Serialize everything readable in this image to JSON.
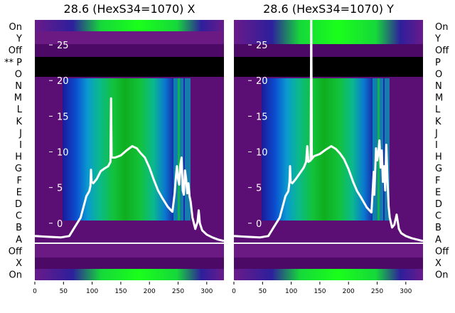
{
  "chart_data": [
    {
      "type": "heatmap",
      "title": "28.6 (HexS34=1070) X",
      "xticks": [
        0,
        50,
        100,
        150,
        200,
        250,
        300
      ],
      "xlim": [
        0,
        330
      ],
      "yticks": [
        0,
        5,
        10,
        15,
        20,
        25
      ],
      "ylim": [
        -8,
        28.5
      ],
      "horizontal_line_y": -2.8,
      "line": {
        "color": "#ffffff",
        "points": [
          [
            0,
            -1.8
          ],
          [
            20,
            -1.9
          ],
          [
            45,
            -2.0
          ],
          [
            60,
            -1.8
          ],
          [
            70,
            -0.5
          ],
          [
            80,
            0.8
          ],
          [
            90,
            3.8
          ],
          [
            95,
            4.5
          ],
          [
            97,
            5.2
          ],
          [
            98,
            7.5
          ],
          [
            99,
            5.8
          ],
          [
            102,
            5.6
          ],
          [
            108,
            6.2
          ],
          [
            115,
            7.3
          ],
          [
            122,
            7.7
          ],
          [
            128,
            8.0
          ],
          [
            132,
            8.6
          ],
          [
            133,
            17.5
          ],
          [
            134,
            9.2
          ],
          [
            140,
            9.2
          ],
          [
            150,
            9.5
          ],
          [
            160,
            10.2
          ],
          [
            170,
            10.8
          ],
          [
            178,
            10.5
          ],
          [
            185,
            9.8
          ],
          [
            192,
            9.2
          ],
          [
            200,
            7.8
          ],
          [
            208,
            6.0
          ],
          [
            215,
            4.6
          ],
          [
            222,
            3.6
          ],
          [
            232,
            2.3
          ],
          [
            240,
            1.6
          ],
          [
            244,
            4.2
          ],
          [
            246,
            6.3
          ],
          [
            248,
            8.0
          ],
          [
            250,
            6.2
          ],
          [
            252,
            5.4
          ],
          [
            254,
            8.2
          ],
          [
            256,
            9.2
          ],
          [
            258,
            4.6
          ],
          [
            260,
            4.0
          ],
          [
            262,
            7.4
          ],
          [
            264,
            6.2
          ],
          [
            266,
            4.2
          ],
          [
            268,
            5.6
          ],
          [
            270,
            3.8
          ],
          [
            272,
            3.0
          ],
          [
            275,
            0.8
          ],
          [
            280,
            -0.8
          ],
          [
            284,
            0.2
          ],
          [
            286,
            1.8
          ],
          [
            288,
            0.0
          ],
          [
            292,
            -1.0
          ],
          [
            300,
            -1.6
          ],
          [
            310,
            -2.0
          ],
          [
            320,
            -2.3
          ],
          [
            330,
            -2.5
          ]
        ]
      },
      "rows_top": [
        "On",
        "Y",
        "Off",
        "** P",
        "O",
        "N",
        "M",
        "L",
        "K",
        "J",
        "I",
        "H",
        "G",
        "F",
        "E",
        "D",
        "C",
        "B",
        "A",
        "Off",
        "X",
        "On"
      ],
      "colors": {
        "background": "#5b0f74",
        "band": "#0f2a9a",
        "green": "#19f019",
        "black": "#000000"
      }
    },
    {
      "type": "heatmap",
      "title": "28.6 (HexS34=1070) Y",
      "xticks": [
        0,
        50,
        100,
        150,
        200,
        250,
        300
      ],
      "xlim": [
        0,
        330
      ],
      "yticks": [
        0,
        5,
        10,
        15,
        20,
        25
      ],
      "ylim": [
        -8,
        28.5
      ],
      "horizontal_line_y": -2.8,
      "line": {
        "color": "#ffffff",
        "points": [
          [
            0,
            -1.8
          ],
          [
            20,
            -1.9
          ],
          [
            45,
            -2.0
          ],
          [
            60,
            -1.8
          ],
          [
            70,
            -0.5
          ],
          [
            80,
            0.8
          ],
          [
            90,
            3.8
          ],
          [
            95,
            4.5
          ],
          [
            97,
            5.8
          ],
          [
            98,
            8.0
          ],
          [
            99,
            5.8
          ],
          [
            102,
            5.6
          ],
          [
            108,
            6.2
          ],
          [
            115,
            7.0
          ],
          [
            122,
            7.8
          ],
          [
            126,
            8.6
          ],
          [
            128,
            10.8
          ],
          [
            130,
            8.6
          ],
          [
            134,
            8.8
          ],
          [
            135,
            29.0
          ],
          [
            136,
            9.0
          ],
          [
            140,
            9.4
          ],
          [
            150,
            9.7
          ],
          [
            160,
            10.3
          ],
          [
            170,
            10.8
          ],
          [
            178,
            10.4
          ],
          [
            185,
            9.8
          ],
          [
            192,
            9.0
          ],
          [
            200,
            7.6
          ],
          [
            208,
            5.8
          ],
          [
            215,
            4.5
          ],
          [
            222,
            3.6
          ],
          [
            232,
            2.2
          ],
          [
            240,
            1.5
          ],
          [
            244,
            7.2
          ],
          [
            245,
            4.0
          ],
          [
            248,
            10.5
          ],
          [
            250,
            8.8
          ],
          [
            252,
            9.8
          ],
          [
            254,
            11.6
          ],
          [
            256,
            7.8
          ],
          [
            258,
            10.2
          ],
          [
            260,
            5.8
          ],
          [
            262,
            8.0
          ],
          [
            264,
            4.6
          ],
          [
            266,
            11.0
          ],
          [
            268,
            6.2
          ],
          [
            270,
            2.4
          ],
          [
            272,
            0.8
          ],
          [
            276,
            -0.6
          ],
          [
            280,
            -0.2
          ],
          [
            284,
            1.2
          ],
          [
            288,
            -0.8
          ],
          [
            292,
            -1.4
          ],
          [
            300,
            -1.8
          ],
          [
            310,
            -2.1
          ],
          [
            320,
            -2.3
          ],
          [
            330,
            -2.5
          ]
        ]
      },
      "rows_top": [
        "On",
        "Y",
        "Off",
        "P",
        "O",
        "N",
        "M",
        "L",
        "K",
        "J",
        "I",
        "H",
        "G",
        "F",
        "E",
        "D",
        "C",
        "B",
        "A",
        "Off",
        "X",
        "On"
      ],
      "colors": {
        "background": "#5b0f74",
        "band": "#0f2a9a",
        "green": "#19f019",
        "black": "#000000"
      }
    }
  ]
}
